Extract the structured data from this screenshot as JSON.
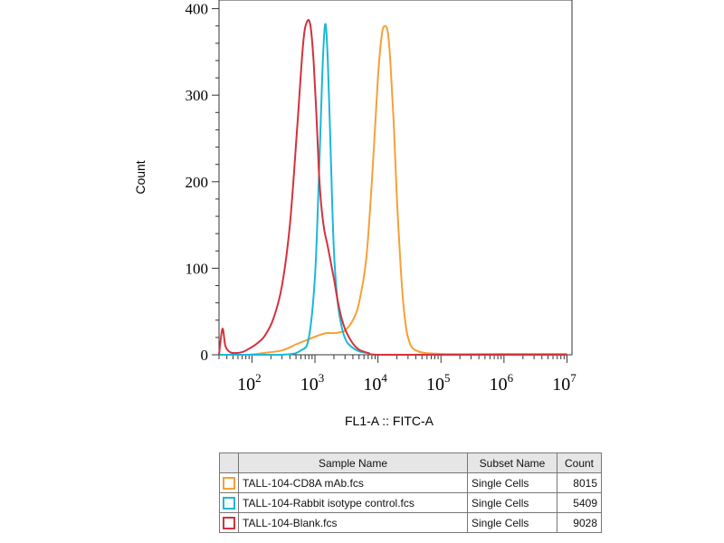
{
  "chart_data": {
    "type": "line",
    "title": "",
    "xlabel": "FL1-A :: FITC-A",
    "ylabel": "Count",
    "x_scale": "log",
    "xlim": [
      30,
      12000000
    ],
    "ylim": [
      0,
      410
    ],
    "y_ticks": [
      0,
      100,
      200,
      300,
      400
    ],
    "x_ticks": [
      {
        "value": 100,
        "base": "10",
        "exp": "2"
      },
      {
        "value": 1000,
        "base": "10",
        "exp": "3"
      },
      {
        "value": 10000,
        "base": "10",
        "exp": "4"
      },
      {
        "value": 100000,
        "base": "10",
        "exp": "5"
      },
      {
        "value": 1000000,
        "base": "10",
        "exp": "6"
      },
      {
        "value": 10000000,
        "base": "10",
        "exp": "7"
      }
    ],
    "grid": false,
    "series": [
      {
        "name": "TALL-104-CD8A mAb.fcs",
        "color": "#f5a038",
        "x": [
          30,
          80,
          150,
          300,
          500,
          800,
          1100,
          1500,
          2000,
          2500,
          3000,
          4000,
          5000,
          6500,
          8000,
          10000,
          11500,
          13000,
          14500,
          16000,
          18000,
          20000,
          23000,
          26000,
          30000,
          40000,
          100000,
          1000000,
          10000000
        ],
        "y": [
          0,
          0,
          2,
          5,
          12,
          18,
          22,
          25,
          25,
          26,
          28,
          40,
          60,
          110,
          200,
          320,
          370,
          380,
          370,
          330,
          260,
          180,
          100,
          50,
          20,
          5,
          1,
          1,
          1
        ]
      },
      {
        "name": "TALL-104-Rabbit isotype control.fcs",
        "color": "#19b8d8",
        "x": [
          30,
          300,
          600,
          800,
          1000,
          1150,
          1300,
          1450,
          1600,
          1800,
          2000,
          2300,
          2700,
          3200,
          4000,
          5000,
          7000,
          10000,
          100000,
          10000000
        ],
        "y": [
          0,
          0,
          5,
          20,
          90,
          200,
          320,
          382,
          340,
          220,
          120,
          60,
          30,
          15,
          8,
          4,
          2,
          0,
          0,
          0
        ]
      },
      {
        "name": "TALL-104-Blank.fcs",
        "color": "#d2323c",
        "x": [
          30,
          34,
          38,
          45,
          55,
          70,
          90,
          120,
          160,
          220,
          300,
          400,
          520,
          650,
          750,
          850,
          950,
          1050,
          1150,
          1250,
          1400,
          1600,
          1800,
          2000,
          2300,
          2700,
          3200,
          4000,
          5000,
          7000,
          10000,
          100000,
          10000000
        ],
        "y": [
          0,
          30,
          10,
          3,
          2,
          3,
          7,
          13,
          22,
          42,
          80,
          150,
          260,
          360,
          385,
          380,
          340,
          280,
          215,
          175,
          145,
          125,
          105,
          88,
          62,
          40,
          25,
          13,
          6,
          2,
          0,
          0,
          0
        ]
      }
    ]
  },
  "legend": {
    "headers": {
      "sample": "Sample Name",
      "subset": "Subset Name",
      "count": "Count"
    },
    "rows": [
      {
        "color": "#f5a038",
        "sample": "TALL-104-CD8A mAb.fcs",
        "subset": "Single Cells",
        "count": "8015"
      },
      {
        "color": "#19b8d8",
        "sample": "TALL-104-Rabbit isotype control.fcs",
        "subset": "Single Cells",
        "count": "5409"
      },
      {
        "color": "#d2323c",
        "sample": "TALL-104-Blank.fcs",
        "subset": "Single Cells",
        "count": "9028"
      }
    ]
  }
}
